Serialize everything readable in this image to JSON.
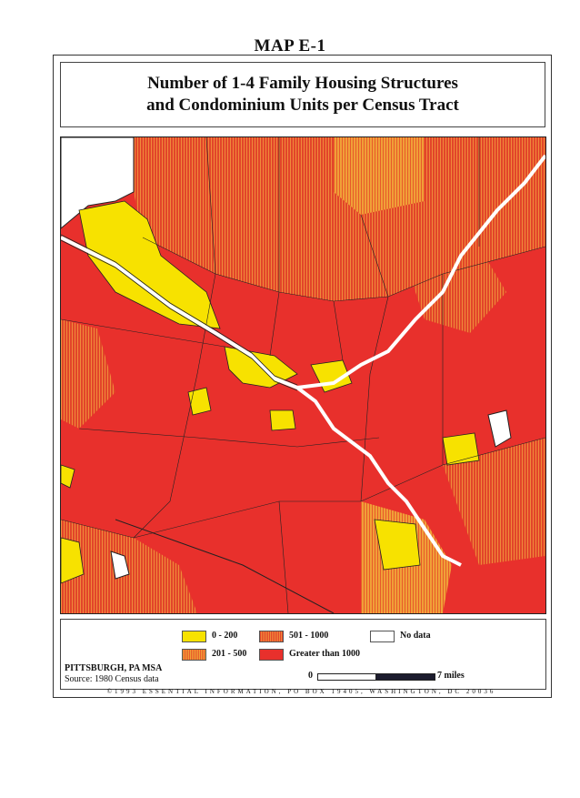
{
  "header": {
    "map_label": "MAP E-1"
  },
  "title": {
    "line1": "Number of 1-4 Family Housing Structures",
    "line2": "and Condominium Units per Census Tract"
  },
  "legend": {
    "items": [
      {
        "label": "0 - 200",
        "color": "#f7e200"
      },
      {
        "label": "201 - 500",
        "color": "#f0a038"
      },
      {
        "label": "501 - 1000",
        "color": "#e85a2a"
      },
      {
        "label": "Greater than 1000",
        "color": "#e8302c"
      },
      {
        "label": "No data",
        "color": "#ffffff"
      }
    ]
  },
  "place": "PITTSBURGH, PA MSA",
  "source": "Source: 1980 Census data",
  "scale": {
    "start": "0",
    "end": "7 miles"
  },
  "credit": "©1993 ESSENTIAL INFORMATION, PO BOX 19405, WASHINGTON, DC 20036",
  "colors": {
    "river": "#ffffff",
    "tract_border": "#222222"
  }
}
